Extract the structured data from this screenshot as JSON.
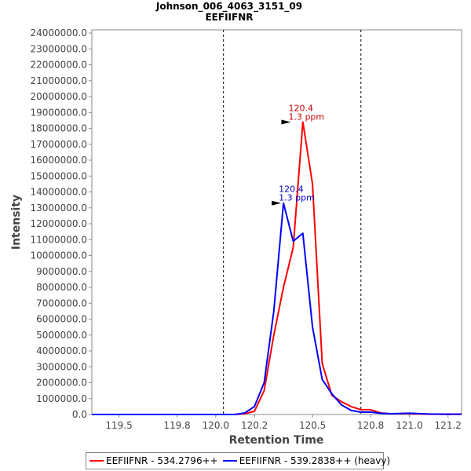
{
  "chart_data": {
    "type": "line",
    "title": "Johnson_006_4063_3151_09",
    "subtitle": "EEFIIFNR",
    "xlabel": "Retention Time",
    "ylabel": "Intensity",
    "xlim": [
      119.36,
      121.27
    ],
    "ylim": [
      0,
      24200000
    ],
    "xticks": [
      119.5,
      119.8,
      120.0,
      120.2,
      120.5,
      120.8,
      121.0,
      121.2
    ],
    "xtick_labels": [
      "119.5",
      "119.8",
      "120.0",
      "120.2",
      "120.5",
      "120.8",
      "121.0",
      "121.2"
    ],
    "yticks": [
      0,
      1000000,
      2000000,
      3000000,
      4000000,
      5000000,
      6000000,
      7000000,
      8000000,
      9000000,
      10000000,
      11000000,
      12000000,
      13000000,
      14000000,
      15000000,
      16000000,
      17000000,
      18000000,
      19000000,
      20000000,
      21000000,
      22000000,
      23000000,
      24000000
    ],
    "ytick_labels": [
      "0.0",
      "1000000.0",
      "2000000.0",
      "3000000.0",
      "4000000.0",
      "5000000.0",
      "6000000.0",
      "7000000.0",
      "8000000.0",
      "9000000.0",
      "10000000.0",
      "11000000.0",
      "12000000.0",
      "13000000.0",
      "14000000.0",
      "15000000.0",
      "16000000.0",
      "17000000.0",
      "18000000.0",
      "19000000.0",
      "20000000.0",
      "21000000.0",
      "22000000.0",
      "23000000.0",
      "24000000.0"
    ],
    "boundaries": [
      120.04,
      120.75
    ],
    "grid": false,
    "legend_position": "bottom",
    "series": [
      {
        "name": "EEFIIFNR - 534.2796++",
        "color": "#ff0000",
        "x": [
          119.36,
          120.1,
          120.15,
          120.2,
          120.25,
          120.3,
          120.35,
          120.4,
          120.45,
          120.5,
          120.55,
          120.6,
          120.65,
          120.7,
          120.75,
          120.8,
          120.85,
          120.9,
          121.0,
          121.1,
          121.2,
          121.27
        ],
        "y": [
          0,
          0,
          50000,
          200000,
          1500000,
          5000000,
          8000000,
          10500000,
          18400000,
          14500000,
          3200000,
          1200000,
          800000,
          500000,
          300000,
          300000,
          100000,
          50000,
          50000,
          20000,
          10000,
          10000
        ]
      },
      {
        "name": "EEFIIFNR - 539.2838++ (heavy)",
        "color": "#0000ff",
        "x": [
          119.36,
          120.1,
          120.15,
          120.2,
          120.25,
          120.3,
          120.35,
          120.4,
          120.45,
          120.5,
          120.55,
          120.6,
          120.65,
          120.7,
          120.75,
          120.8,
          120.85,
          120.9,
          121.0,
          121.1,
          121.2,
          121.27
        ],
        "y": [
          0,
          0,
          100000,
          500000,
          2000000,
          6500000,
          13300000,
          10900000,
          11400000,
          5500000,
          2200000,
          1300000,
          600000,
          250000,
          150000,
          150000,
          80000,
          50000,
          80000,
          30000,
          20000,
          20000
        ]
      }
    ],
    "annotations": [
      {
        "x": 120.4,
        "y": 18400000,
        "label1": "120.4",
        "label2": "1.3 ppm",
        "color": "#cc0000",
        "series": 0
      },
      {
        "x": 120.35,
        "y": 13300000,
        "label1": "120.4",
        "label2": "1.3 ppm",
        "color": "#0000cc",
        "series": 1
      }
    ]
  }
}
